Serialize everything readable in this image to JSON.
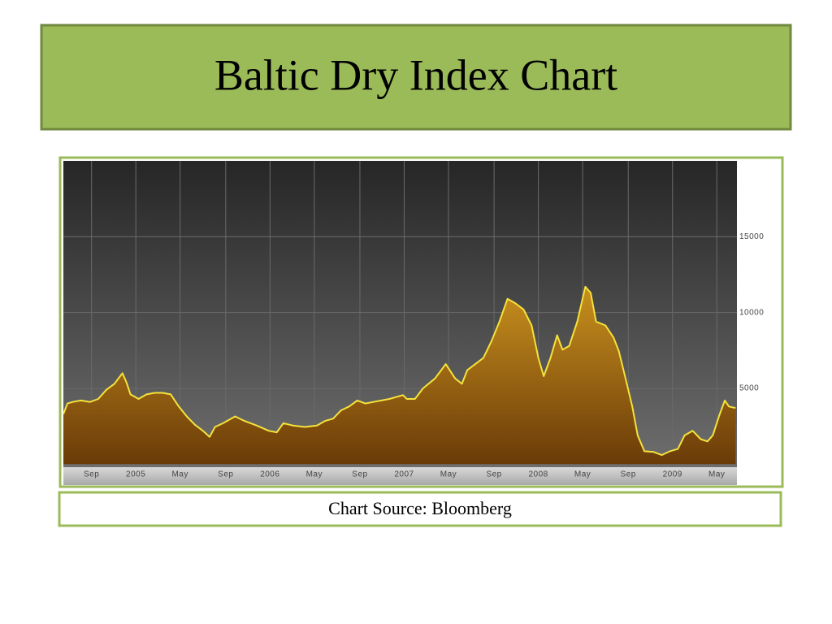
{
  "chart_data": {
    "type": "area",
    "title": "Baltic Dry Index Chart",
    "source": "Chart Source: Bloomberg",
    "x": [
      2004.46,
      2004.49,
      2004.53,
      2004.59,
      2004.66,
      2004.72,
      2004.78,
      2004.84,
      2004.9,
      2004.93,
      2004.96,
      2005.02,
      2005.08,
      2005.14,
      2005.2,
      2005.26,
      2005.32,
      2005.38,
      2005.44,
      2005.5,
      2005.55,
      2005.59,
      2005.65,
      2005.74,
      2005.81,
      2005.9,
      2005.99,
      2006.05,
      2006.1,
      2006.17,
      2006.26,
      2006.35,
      2006.41,
      2006.47,
      2006.53,
      2006.59,
      2006.65,
      2006.71,
      2006.77,
      2006.83,
      2006.89,
      2006.99,
      2007.02,
      2007.08,
      2007.14,
      2007.23,
      2007.31,
      2007.38,
      2007.43,
      2007.47,
      2007.53,
      2007.59,
      2007.65,
      2007.71,
      2007.77,
      2007.83,
      2007.89,
      2007.95,
      2008.0,
      2008.04,
      2008.09,
      2008.14,
      2008.18,
      2008.23,
      2008.29,
      2008.35,
      2008.39,
      2008.43,
      2008.5,
      2008.56,
      2008.6,
      2008.65,
      2008.7,
      2008.74,
      2008.79,
      2008.86,
      2008.92,
      2008.98,
      2009.04,
      2009.09,
      2009.15,
      2009.21,
      2009.26,
      2009.3,
      2009.35,
      2009.39,
      2009.42,
      2009.47
    ],
    "values": [
      3300,
      4000,
      4100,
      4200,
      4100,
      4300,
      4900,
      5300,
      6000,
      5400,
      4600,
      4300,
      4600,
      4700,
      4700,
      4600,
      3800,
      3150,
      2600,
      2200,
      1800,
      2450,
      2700,
      3150,
      2850,
      2550,
      2200,
      2100,
      2700,
      2550,
      2450,
      2550,
      2850,
      3000,
      3550,
      3800,
      4200,
      4000,
      4100,
      4200,
      4300,
      4550,
      4300,
      4300,
      5000,
      5650,
      6600,
      5650,
      5300,
      6200,
      6600,
      7000,
      8100,
      9400,
      10900,
      10600,
      10200,
      9150,
      7000,
      5800,
      7000,
      8500,
      7550,
      7800,
      9400,
      11700,
      11300,
      9400,
      9150,
      8350,
      7450,
      5650,
      3800,
      1900,
      850,
      800,
      600,
      850,
      1000,
      1900,
      2200,
      1650,
      1500,
      1900,
      3250,
      4200,
      3800,
      3700
    ],
    "color": "#f5e23a",
    "xlim": [
      2004.46,
      2009.48
    ],
    "xticks": [
      {
        "value": 2004.67,
        "label": "Sep"
      },
      {
        "value": 2005,
        "label": "2005"
      },
      {
        "value": 2005.33,
        "label": "May"
      },
      {
        "value": 2005.67,
        "label": "Sep"
      },
      {
        "value": 2006,
        "label": "2006"
      },
      {
        "value": 2006.33,
        "label": "May"
      },
      {
        "value": 2006.67,
        "label": "Sep"
      },
      {
        "value": 2007,
        "label": "2007"
      },
      {
        "value": 2007.33,
        "label": "May"
      },
      {
        "value": 2007.67,
        "label": "Sep"
      },
      {
        "value": 2008,
        "label": "2008"
      },
      {
        "value": 2008.33,
        "label": "May"
      },
      {
        "value": 2008.67,
        "label": "Sep"
      },
      {
        "value": 2009,
        "label": "2009"
      },
      {
        "value": 2009.33,
        "label": "May"
      }
    ],
    "ylim": [
      -200,
      20000
    ],
    "yticks": [
      5000,
      10000,
      15000
    ],
    "grid": true
  }
}
